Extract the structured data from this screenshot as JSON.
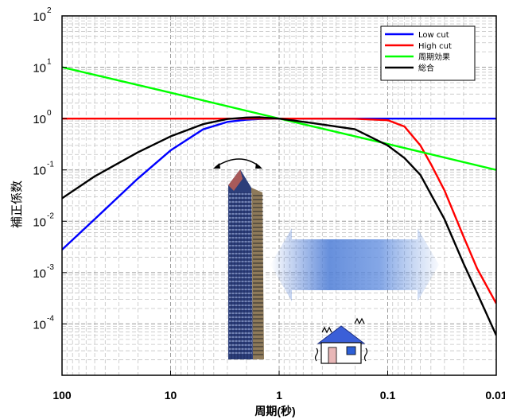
{
  "chart_data": {
    "type": "line",
    "xlabel": "周期(秒)",
    "ylabel": "補正係数",
    "x_scale": "log",
    "y_scale": "log",
    "x_reversed": true,
    "xlim": [
      100,
      0.01
    ],
    "ylim": [
      1e-05,
      100
    ],
    "grid": true,
    "legend_position": "top-right",
    "x_ticks": [
      {
        "value": 100,
        "label": "100"
      },
      {
        "value": 10,
        "label": "10"
      },
      {
        "value": 1,
        "label": "1"
      },
      {
        "value": 0.1,
        "label": "0.1"
      },
      {
        "value": 0.01,
        "label": "0.01"
      }
    ],
    "y_ticks": [
      {
        "value": 100,
        "base": "10",
        "exp": "2"
      },
      {
        "value": 10,
        "base": "10",
        "exp": "1"
      },
      {
        "value": 1,
        "base": "10",
        "exp": "0"
      },
      {
        "value": 0.1,
        "base": "10",
        "exp": "-1"
      },
      {
        "value": 0.01,
        "base": "10",
        "exp": "-2"
      },
      {
        "value": 0.001,
        "base": "10",
        "exp": "-3"
      },
      {
        "value": 0.0001,
        "base": "10",
        "exp": "-4"
      }
    ],
    "series": [
      {
        "name": "Low cut",
        "color": "#0000ff",
        "x": [
          100,
          50,
          20,
          10,
          5,
          3,
          2,
          1.5,
          1,
          0.5,
          0.1,
          0.01
        ],
        "y": [
          0.0028,
          0.011,
          0.068,
          0.24,
          0.62,
          0.86,
          0.95,
          0.98,
          1.0,
          1.0,
          1.0,
          1.0
        ]
      },
      {
        "name": "High cut",
        "color": "#ff0000",
        "x": [
          100,
          1,
          0.2,
          0.1,
          0.07,
          0.05,
          0.04,
          0.03,
          0.02,
          0.015,
          0.01
        ],
        "y": [
          1.0,
          1.0,
          0.99,
          0.93,
          0.7,
          0.3,
          0.13,
          0.04,
          0.005,
          0.0012,
          0.00025
        ]
      },
      {
        "name": "周期効果",
        "color": "#00ff00",
        "x": [
          100,
          10,
          1,
          0.1,
          0.01
        ],
        "y": [
          10,
          3.2,
          1.0,
          0.32,
          0.1
        ]
      },
      {
        "name": "総合",
        "color": "#000000",
        "x": [
          100,
          50,
          20,
          10,
          5,
          3,
          2,
          1.5,
          1,
          0.5,
          0.2,
          0.1,
          0.07,
          0.05,
          0.03,
          0.02,
          0.015,
          0.01
        ],
        "y": [
          0.028,
          0.075,
          0.22,
          0.45,
          0.78,
          0.98,
          1.05,
          1.06,
          1.0,
          0.82,
          0.62,
          0.3,
          0.17,
          0.08,
          0.011,
          0.0015,
          0.0004,
          6e-05
        ]
      }
    ]
  },
  "illustrations": {
    "building": "high-rise-building",
    "house": "house-shaking",
    "sway_arrow": "sway-arrow-icon",
    "range_arrow": "double-arrow"
  }
}
